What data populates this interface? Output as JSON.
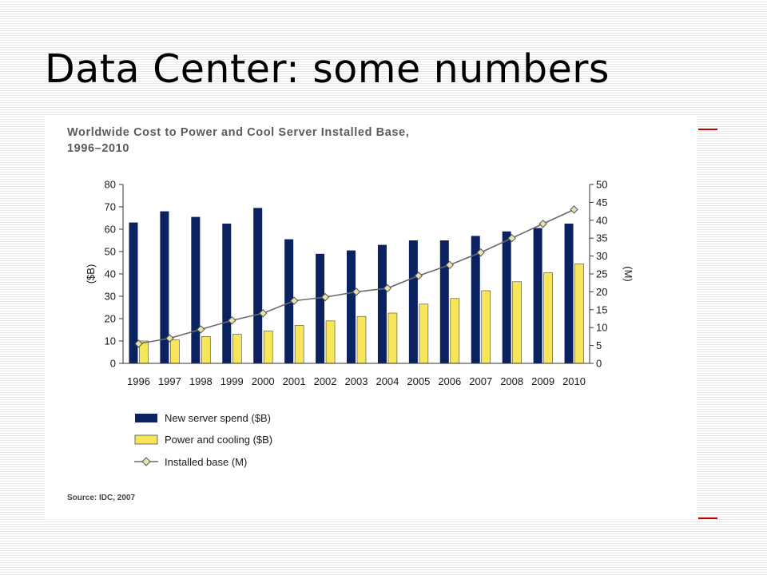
{
  "slide": {
    "title": "Data Center: some numbers",
    "accent_color": "#c00000"
  },
  "chart_data": {
    "type": "bar",
    "title": "Worldwide Cost to Power and Cool Server Installed Base,",
    "subtitle": "1996–2010",
    "categories": [
      "1996",
      "1997",
      "1998",
      "1999",
      "2000",
      "2001",
      "2002",
      "2003",
      "2004",
      "2005",
      "2006",
      "2007",
      "2008",
      "2009",
      "2010"
    ],
    "series": [
      {
        "name": "New server spend ($B)",
        "kind": "bar",
        "axis": "left",
        "color": "#0b2260",
        "values": [
          63,
          68,
          65.5,
          62.5,
          69.5,
          55.5,
          49,
          50.5,
          53,
          55,
          55,
          57,
          59,
          60.5,
          62.5
        ]
      },
      {
        "name": "Power and cooling ($B)",
        "kind": "bar",
        "axis": "left",
        "color": "#f8e65a",
        "values": [
          10,
          10.5,
          12,
          13,
          14.5,
          17,
          19,
          21,
          22.5,
          26.5,
          29,
          32.5,
          36.5,
          40.5,
          44.5
        ]
      },
      {
        "name": "Installed base (M)",
        "kind": "line",
        "axis": "right",
        "color": "#6a6a6a",
        "marker_fill": "#e8e4b0",
        "values": [
          5.5,
          7,
          9.5,
          12,
          14,
          17.5,
          18.5,
          20,
          21,
          24.5,
          27.5,
          31,
          35,
          39,
          43
        ]
      }
    ],
    "ylabel": "($B)",
    "y2label": "(M)",
    "ylim": [
      0,
      80
    ],
    "y2lim": [
      0,
      50
    ],
    "yticks": [
      0,
      10,
      20,
      30,
      40,
      50,
      60,
      70,
      80
    ],
    "y2ticks": [
      0,
      5,
      10,
      15,
      20,
      25,
      30,
      35,
      40,
      45,
      50
    ],
    "legend_position": "bottom-left",
    "grid": false,
    "source": "Source: IDC, 2007"
  }
}
